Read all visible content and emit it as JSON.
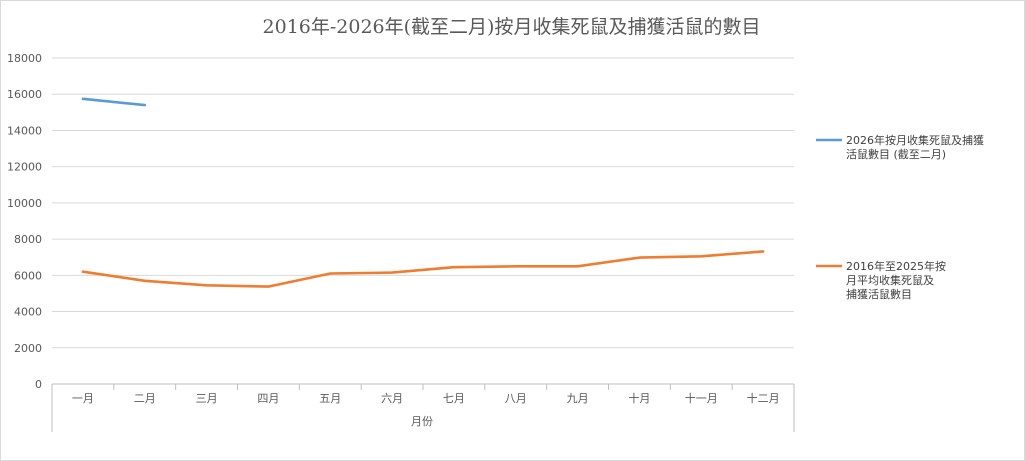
{
  "chart_data": {
    "type": "line",
    "title": "2016年-2026年(截至二月)按月收集死鼠及捕獲活鼠的數目",
    "xlabel": "月份",
    "ylabel": "",
    "categories": [
      "一月",
      "二月",
      "三月",
      "四月",
      "五月",
      "六月",
      "七月",
      "八月",
      "九月",
      "十月",
      "十一月",
      "十二月"
    ],
    "ylim": [
      0,
      18000
    ],
    "yticks": [
      0,
      2000,
      4000,
      6000,
      8000,
      10000,
      12000,
      14000,
      16000,
      18000
    ],
    "grid": true,
    "legend_position": "right",
    "series": [
      {
        "name": "2026年按月收集死鼠及捕獲活鼠數目 (截至二月)",
        "legend_lines": [
          "2026年按月收集死鼠及捕獲",
          "活鼠數目 (截至二月)"
        ],
        "color": "#5b9bd5",
        "values": [
          15750,
          15400,
          null,
          null,
          null,
          null,
          null,
          null,
          null,
          null,
          null,
          null
        ]
      },
      {
        "name": "2016年至2025年按月平均收集死鼠及捕獲活鼠數目",
        "legend_lines": [
          "2016年至2025年按",
          "月平均收集死鼠及",
          "捕獲活鼠數目"
        ],
        "color": "#ed7d31",
        "values": [
          6200,
          5700,
          5450,
          5380,
          6100,
          6150,
          6450,
          6500,
          6500,
          6980,
          7050,
          7320
        ]
      }
    ]
  }
}
